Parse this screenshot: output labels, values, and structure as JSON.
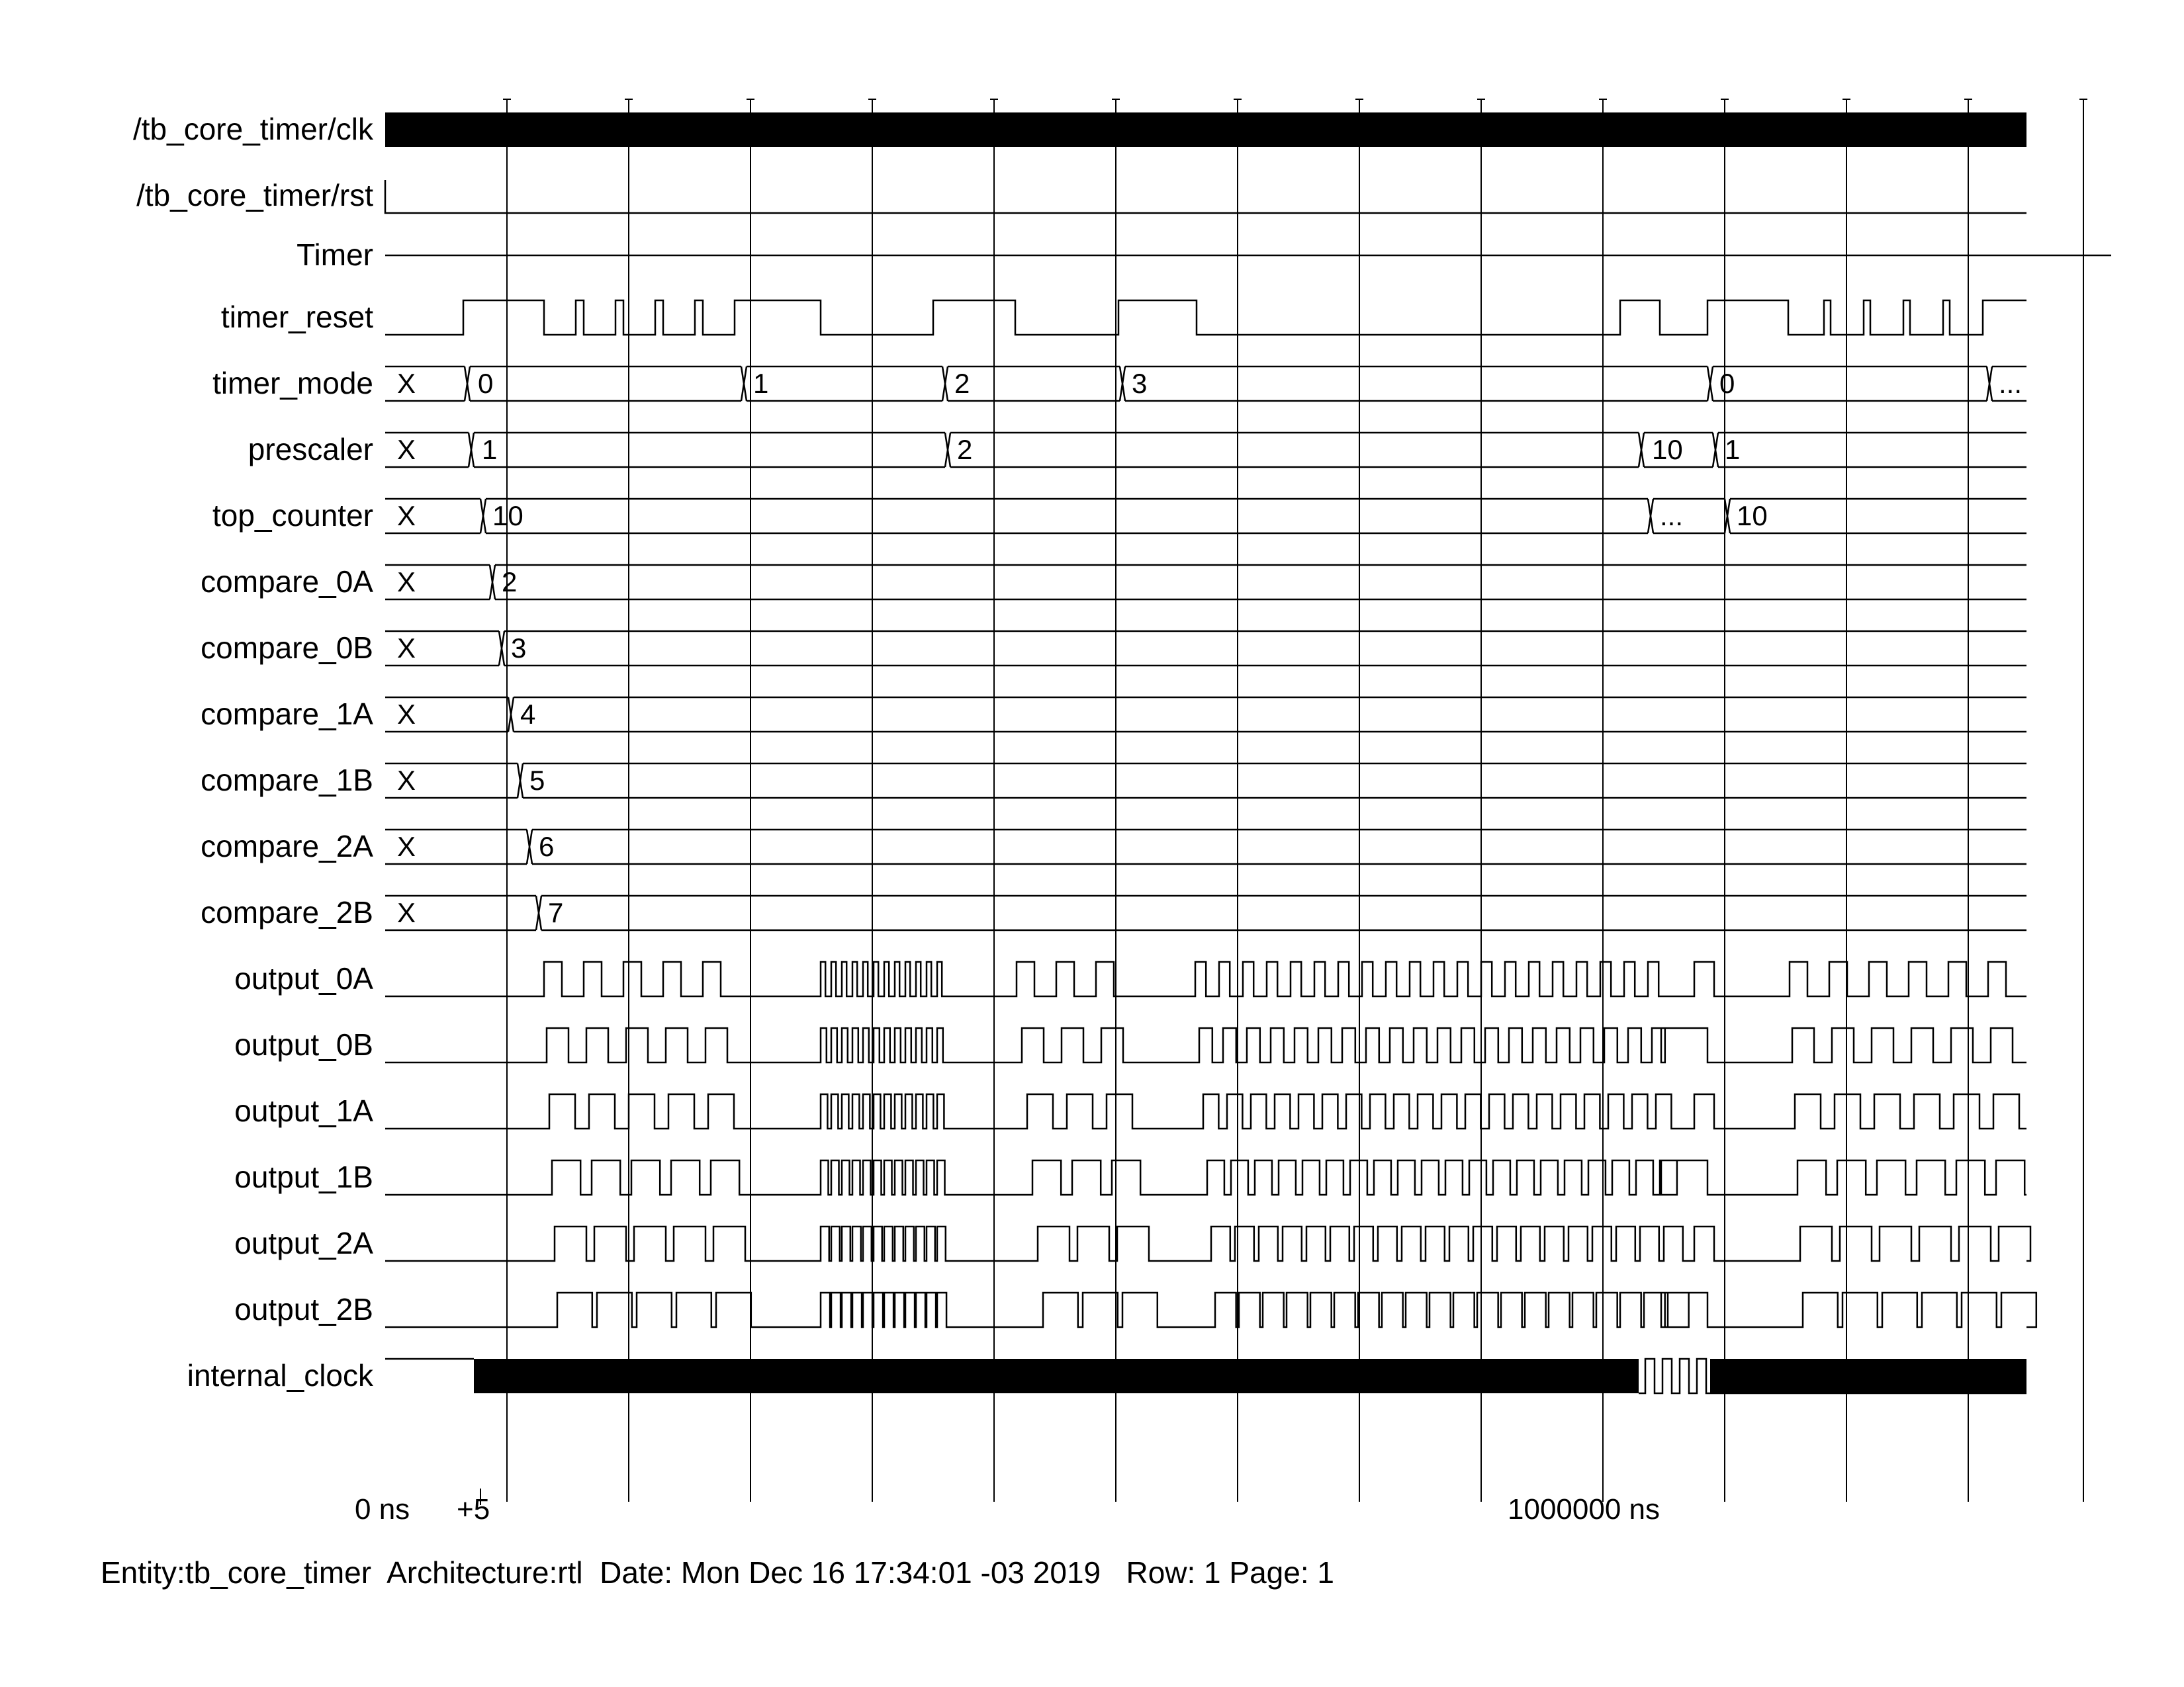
{
  "signals": [
    {
      "name": "/tb_core_timer/clk",
      "kind": "clock"
    },
    {
      "name": "/tb_core_timer/rst",
      "kind": "low"
    },
    {
      "name": "Timer",
      "kind": "divider"
    },
    {
      "name": "timer_reset",
      "kind": "digital"
    },
    {
      "name": "timer_mode",
      "kind": "bus",
      "values": [
        "X",
        "0",
        "1",
        "2",
        "3",
        "0",
        "..."
      ]
    },
    {
      "name": "prescaler",
      "kind": "bus",
      "values": [
        "X",
        "1",
        "2",
        "10",
        "1"
      ]
    },
    {
      "name": "top_counter",
      "kind": "bus",
      "values": [
        "X",
        "10",
        "...",
        "10"
      ]
    },
    {
      "name": "compare_0A",
      "kind": "bus",
      "values": [
        "X",
        "2"
      ]
    },
    {
      "name": "compare_0B",
      "kind": "bus",
      "values": [
        "X",
        "3"
      ]
    },
    {
      "name": "compare_1A",
      "kind": "bus",
      "values": [
        "X",
        "4"
      ]
    },
    {
      "name": "compare_1B",
      "kind": "bus",
      "values": [
        "X",
        "5"
      ]
    },
    {
      "name": "compare_2A",
      "kind": "bus",
      "values": [
        "X",
        "6"
      ]
    },
    {
      "name": "compare_2B",
      "kind": "bus",
      "values": [
        "X",
        "7"
      ]
    },
    {
      "name": "output_0A",
      "kind": "digital"
    },
    {
      "name": "output_0B",
      "kind": "digital"
    },
    {
      "name": "output_1A",
      "kind": "digital"
    },
    {
      "name": "output_1B",
      "kind": "digital"
    },
    {
      "name": "output_2A",
      "kind": "digital"
    },
    {
      "name": "output_2B",
      "kind": "digital"
    },
    {
      "name": "internal_clock",
      "kind": "clock"
    }
  ],
  "time_axis": {
    "start_label": "0 ns",
    "cursor_label": "+5",
    "mid_label": "1000000 ns"
  },
  "footer": {
    "text": "Entity:tb_core_timer  Architecture:rtl  Date: Mon Dec 16 17:34:01 -03 2019   Row: 1 Page: 1"
  }
}
